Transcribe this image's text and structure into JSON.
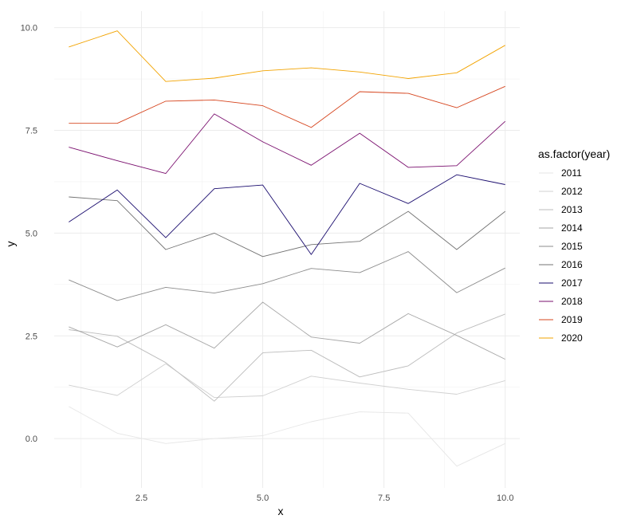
{
  "chart_data": {
    "type": "line",
    "xlabel": "x",
    "ylabel": "y",
    "xlim": [
      0.7,
      10.3
    ],
    "ylim": [
      -1.2,
      10.4
    ],
    "x_ticks": [
      {
        "value": 2.5,
        "label": "2.5"
      },
      {
        "value": 5.0,
        "label": "5.0"
      },
      {
        "value": 7.5,
        "label": "7.5"
      },
      {
        "value": 10.0,
        "label": "10.0"
      }
    ],
    "y_ticks": [
      {
        "value": 0.0,
        "label": "0.0"
      },
      {
        "value": 2.5,
        "label": "2.5"
      },
      {
        "value": 5.0,
        "label": "5.0"
      },
      {
        "value": 7.5,
        "label": "7.5"
      },
      {
        "value": 10.0,
        "label": "10.0"
      }
    ],
    "grid": true,
    "legend": {
      "title": "as.factor(year)",
      "position": "right"
    },
    "x": [
      1,
      2,
      3,
      4,
      5,
      6,
      7,
      8,
      9,
      10
    ],
    "series": [
      {
        "name": "2011",
        "color": "#e6e6e6",
        "values": [
          0.78,
          0.13,
          -0.12,
          0.0,
          0.07,
          0.41,
          0.65,
          0.62,
          -0.67,
          -0.12
        ]
      },
      {
        "name": "2012",
        "color": "#d0d0d0",
        "values": [
          1.3,
          1.05,
          1.82,
          1.0,
          1.04,
          1.52,
          1.35,
          1.2,
          1.08,
          1.41
        ]
      },
      {
        "name": "2013",
        "color": "#bcbcbc",
        "values": [
          2.65,
          2.49,
          1.85,
          0.91,
          2.09,
          2.15,
          1.5,
          1.77,
          2.57,
          3.03
        ]
      },
      {
        "name": "2014",
        "color": "#a6a6a6",
        "values": [
          2.72,
          2.23,
          2.77,
          2.2,
          3.32,
          2.47,
          2.32,
          3.04,
          2.51,
          1.93
        ]
      },
      {
        "name": "2015",
        "color": "#8c8c8c",
        "values": [
          3.86,
          3.36,
          3.68,
          3.54,
          3.77,
          4.14,
          4.04,
          4.55,
          3.55,
          4.15
        ]
      },
      {
        "name": "2016",
        "color": "#737373",
        "values": [
          5.88,
          5.79,
          4.6,
          5.0,
          4.43,
          4.72,
          4.8,
          5.53,
          4.6,
          5.53
        ]
      },
      {
        "name": "2017",
        "color": "#1a0c6e",
        "values": [
          5.27,
          6.05,
          4.89,
          6.08,
          6.17,
          4.48,
          6.21,
          5.72,
          6.42,
          6.18
        ]
      },
      {
        "name": "2018",
        "color": "#7a0f6e",
        "values": [
          7.09,
          6.76,
          6.45,
          7.9,
          7.22,
          6.65,
          7.43,
          6.6,
          6.64,
          7.72
        ]
      },
      {
        "name": "2019",
        "color": "#d6451e",
        "values": [
          7.67,
          7.67,
          8.21,
          8.24,
          8.1,
          7.57,
          8.44,
          8.4,
          8.05,
          8.57
        ]
      },
      {
        "name": "2020",
        "color": "#f2a300",
        "values": [
          9.53,
          9.92,
          8.69,
          8.77,
          8.95,
          9.02,
          8.92,
          8.76,
          8.9,
          9.57
        ]
      }
    ]
  }
}
